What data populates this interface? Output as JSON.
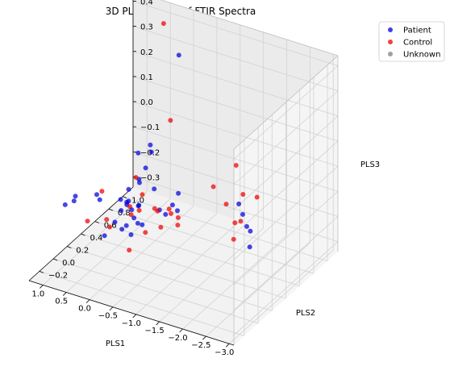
{
  "chart_data": {
    "type": "scatter",
    "projection": "3d",
    "title": "3D PLS-DA PCA of FTIR Spectra",
    "xlabel": "PLS1",
    "ylabel": "PLS2",
    "zlabel": "PLS3",
    "xlim": [
      -3.1,
      1.3
    ],
    "ylim": [
      -0.35,
      1.15
    ],
    "zlim": [
      -0.34,
      0.44
    ],
    "xticks": [
      "−3.0",
      "−2.5",
      "−2.0",
      "−1.5",
      "−1.0",
      "−0.5",
      "0.0",
      "0.5",
      "1.0"
    ],
    "yticks": [
      "−0.2",
      "0.0",
      "0.2",
      "0.4",
      "0.6",
      "0.8",
      "1.0"
    ],
    "zticks": [
      "−0.3",
      "−0.2",
      "−0.1",
      "0.0",
      "0.1",
      "0.2",
      "0.3",
      "0.4"
    ],
    "grid": true,
    "legend_position": "upper right, outside plot",
    "series": [
      {
        "name": "Patient",
        "color": "#0000dd",
        "points": [
          [
            -2.86,
            0.04,
            -0.06
          ],
          [
            -2.5,
            0.29,
            -0.08
          ],
          [
            -2.14,
            0.48,
            -0.13
          ],
          [
            -2.04,
            0.49,
            -0.09
          ],
          [
            -1.88,
            0.54,
            -0.07
          ],
          [
            -0.62,
            0.43,
            -0.12
          ],
          [
            -0.59,
            0.35,
            -0.14
          ],
          [
            -0.64,
            0.5,
            -0.09
          ],
          [
            -0.46,
            0.35,
            -0.13
          ],
          [
            -0.14,
            0.26,
            -0.11
          ],
          [
            0.59,
            0.15,
            -0.08
          ],
          [
            1.0,
            -0.03,
            -0.1
          ],
          [
            0.9,
            0.05,
            -0.08
          ],
          [
            -0.28,
            0.07,
            -0.07
          ],
          [
            -0.31,
            0.04,
            -0.16
          ],
          [
            -0.12,
            0.1,
            -0.15
          ],
          [
            0.08,
            0.07,
            -0.14
          ],
          [
            0.02,
            0.13,
            -0.18
          ],
          [
            -0.06,
            0.25,
            -0.16
          ],
          [
            0.19,
            0.34,
            -0.13
          ],
          [
            0.3,
            0.3,
            -0.12
          ],
          [
            0.29,
            0.38,
            -0.15
          ],
          [
            0.19,
            0.49,
            -0.08
          ],
          [
            0.15,
            0.56,
            -0.05
          ],
          [
            0.17,
            0.64,
            0.02
          ],
          [
            0.25,
            0.71,
            -0.03
          ],
          [
            0.4,
            0.62,
            -0.02
          ],
          [
            0.52,
            0.72,
            -0.17
          ],
          [
            0.62,
            0.63,
            -0.18
          ],
          [
            0.42,
            0.47,
            -0.19
          ],
          [
            0.41,
            0.38,
            -0.19
          ],
          [
            0.54,
            0.16,
            -0.1
          ],
          [
            -0.8,
            0.38,
            -0.12
          ],
          [
            -0.34,
            0.71,
            0.39
          ],
          [
            0.4,
            0.85,
            -0.22
          ],
          [
            -0.18,
            0.24,
            -0.1
          ],
          [
            0.05,
            0.38,
            -0.22
          ],
          [
            0.75,
            -0.07,
            -0.06
          ],
          [
            0.14,
            -0.04,
            -0.17
          ],
          [
            -0.49,
            0.08,
            -0.12
          ]
        ]
      },
      {
        "name": "Control",
        "color": "#ee0000",
        "points": [
          [
            -2.54,
            0.36,
            0.04
          ],
          [
            -2.38,
            0.13,
            -0.08
          ],
          [
            -2.04,
            0.46,
            -0.11
          ],
          [
            -2.0,
            0.52,
            -0.02
          ],
          [
            -1.93,
            0.45,
            -0.12
          ],
          [
            -1.6,
            0.69,
            0.03
          ],
          [
            -1.55,
            0.58,
            -0.1
          ],
          [
            -1.26,
            0.59,
            -0.05
          ],
          [
            -1.06,
            0.21,
            -0.12
          ],
          [
            -0.98,
            0.27,
            -0.11
          ],
          [
            -0.86,
            0.22,
            -0.07
          ],
          [
            -0.75,
            0.32,
            -0.12
          ],
          [
            -0.58,
            0.24,
            -0.1
          ],
          [
            -0.49,
            0.26,
            -0.1
          ],
          [
            -0.41,
            0.09,
            -0.07
          ],
          [
            -0.32,
            0.24,
            -0.2
          ],
          [
            -0.15,
            0.13,
            -0.08
          ],
          [
            0.02,
            0.83,
            0.08
          ],
          [
            0.61,
            0.35,
            -0.26
          ],
          [
            0.58,
            0.01,
            -0.15
          ],
          [
            0.39,
            0.09,
            -0.04
          ],
          [
            0.18,
            0.44,
            -0.06
          ],
          [
            0.26,
            0.07,
            -0.14
          ],
          [
            0.42,
            1.0,
            0.4
          ],
          [
            -0.83,
            0.12,
            -0.12
          ],
          [
            -0.18,
            0.13,
            -0.11
          ],
          [
            -0.27,
            0.23,
            -0.05
          ],
          [
            -0.33,
            0.0,
            -0.21
          ]
        ]
      },
      {
        "name": "Unknown",
        "color": "#808080",
        "points": []
      }
    ]
  }
}
